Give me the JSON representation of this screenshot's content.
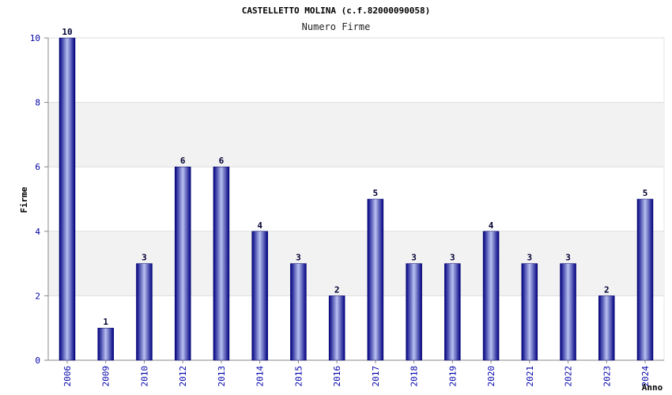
{
  "chart_data": {
    "type": "bar",
    "title": "CASTELLETTO MOLINA (c.f.82000090058)",
    "subtitle": "Numero Firme",
    "xlabel": "Anno",
    "ylabel": "Firme",
    "categories": [
      "2006",
      "2009",
      "2010",
      "2012",
      "2013",
      "2014",
      "2015",
      "2016",
      "2017",
      "2018",
      "2019",
      "2020",
      "2021",
      "2022",
      "2023",
      "2024"
    ],
    "values": [
      10,
      1,
      3,
      6,
      6,
      4,
      3,
      2,
      5,
      3,
      3,
      4,
      3,
      3,
      2,
      5
    ],
    "ylim": [
      0,
      10
    ],
    "yticks": [
      0,
      2,
      4,
      6,
      8,
      10
    ],
    "grid": true,
    "colors": {
      "bar_dark": "#000080",
      "bar_light": "#b8c0f0",
      "band": "#f2f2f2",
      "tick_text": "#0000aa"
    }
  }
}
